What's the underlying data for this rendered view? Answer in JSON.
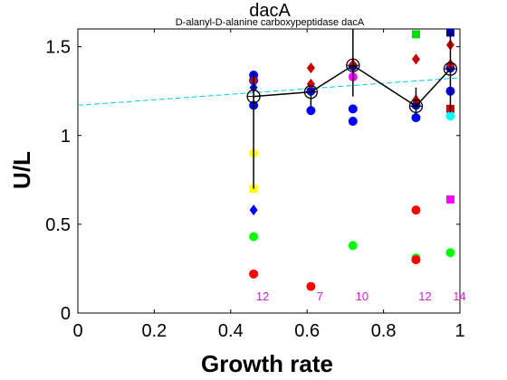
{
  "chart_data": {
    "type": "scatter",
    "title": "dacA",
    "subtitle": "D-alanyl-D-alanine carboxypeptidase dacA",
    "xlabel": "Growth rate",
    "ylabel": "U/L",
    "xlim": [
      0,
      1.0
    ],
    "ylim": [
      0,
      1.6
    ],
    "xticks": [
      "0",
      "0.2",
      "0.4",
      "0.6",
      "0.8",
      "1"
    ],
    "yticks": [
      "0",
      "0.5",
      "1",
      "1.5"
    ],
    "grid": false,
    "mean_line": {
      "x": [
        0.46,
        0.61,
        0.72,
        0.885,
        0.975
      ],
      "y": [
        1.22,
        1.245,
        1.395,
        1.165,
        1.375
      ],
      "err_low": [
        0.7,
        1.16,
        1.22,
        1.12,
        1.13
      ],
      "err_high": [
        1.35,
        1.27,
        1.6,
        1.27,
        1.58
      ]
    },
    "trend_line": {
      "x": [
        0,
        1.0
      ],
      "y": [
        1.17,
        1.325
      ],
      "color": "#00ccee"
    },
    "series": [
      {
        "marker": "circle",
        "color": "#0000ff",
        "points": [
          [
            0.46,
            1.34
          ],
          [
            0.46,
            1.31
          ],
          [
            0.46,
            1.17
          ],
          [
            0.61,
            1.25
          ],
          [
            0.61,
            1.14
          ],
          [
            0.72,
            1.39
          ],
          [
            0.72,
            1.15
          ],
          [
            0.72,
            1.08
          ],
          [
            0.885,
            1.17
          ],
          [
            0.885,
            1.1
          ],
          [
            0.975,
            1.38
          ],
          [
            0.975,
            1.25
          ]
        ]
      },
      {
        "marker": "diamond",
        "color": "#cc0000",
        "points": [
          [
            0.46,
            1.31
          ],
          [
            0.61,
            1.38
          ],
          [
            0.61,
            1.29
          ],
          [
            0.72,
            1.4
          ],
          [
            0.885,
            1.43
          ],
          [
            0.885,
            1.2
          ],
          [
            0.975,
            1.51
          ],
          [
            0.975,
            1.4
          ]
        ]
      },
      {
        "marker": "diamond",
        "color": "#0000ff",
        "points": [
          [
            0.46,
            1.27
          ],
          [
            0.46,
            0.58
          ]
        ]
      },
      {
        "marker": "square",
        "color": "#0000aa",
        "points": [
          [
            0.975,
            1.58
          ]
        ]
      },
      {
        "marker": "square",
        "color": "#cc0000",
        "points": [
          [
            0.975,
            1.15
          ]
        ]
      },
      {
        "marker": "square",
        "color": "#00dd00",
        "points": [
          [
            0.885,
            1.57
          ]
        ]
      },
      {
        "marker": "square",
        "color": "#ff00ff",
        "points": [
          [
            0.975,
            0.64
          ]
        ]
      },
      {
        "marker": "square",
        "color": "#ffff00",
        "points": [
          [
            0.46,
            0.7
          ]
        ]
      },
      {
        "marker": "circle",
        "color": "#ffff00",
        "points": [
          [
            0.46,
            0.9
          ]
        ]
      },
      {
        "marker": "circle",
        "color": "#ff00ff",
        "points": [
          [
            0.72,
            1.33
          ]
        ]
      },
      {
        "marker": "circle",
        "color": "#00ffff",
        "points": [
          [
            0.975,
            1.11
          ]
        ]
      },
      {
        "marker": "circle",
        "color": "#00ff00",
        "points": [
          [
            0.46,
            0.43
          ],
          [
            0.72,
            0.38
          ],
          [
            0.885,
            0.31
          ],
          [
            0.975,
            0.34
          ]
        ]
      },
      {
        "marker": "circle",
        "color": "#ff0000",
        "points": [
          [
            0.46,
            0.22
          ],
          [
            0.61,
            0.15
          ],
          [
            0.885,
            0.58
          ],
          [
            0.885,
            0.3
          ]
        ]
      }
    ],
    "counts": [
      {
        "x": 0.46,
        "label": "12"
      },
      {
        "x": 0.61,
        "label": "7"
      },
      {
        "x": 0.72,
        "label": "10"
      },
      {
        "x": 0.885,
        "label": "12"
      },
      {
        "x": 0.975,
        "label": "14"
      }
    ]
  }
}
